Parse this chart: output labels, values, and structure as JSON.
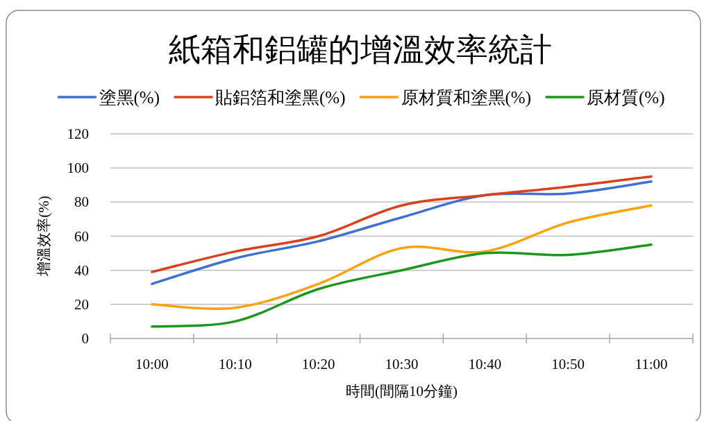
{
  "chart_data": {
    "type": "line",
    "title": "紙箱和鋁罐的增溫效率統計",
    "xlabel": "時間(間隔10分鐘)",
    "ylabel": "增溫效率(%)",
    "categories": [
      "10:00",
      "10:10",
      "10:20",
      "10:30",
      "10:40",
      "10:50",
      "11:00"
    ],
    "series": [
      {
        "name": "塗黑(%)",
        "color": "#3f6fd1",
        "values": [
          32,
          47,
          57,
          71,
          84,
          85,
          92
        ]
      },
      {
        "name": "貼鋁箔和塗黑(%)",
        "color": "#d9411c",
        "values": [
          39,
          51,
          60,
          78,
          84,
          89,
          95
        ]
      },
      {
        "name": "原材質和塗黑(%)",
        "color": "#ffa10a",
        "values": [
          20,
          18,
          32,
          53,
          51,
          68,
          78
        ]
      },
      {
        "name": "原材質(%)",
        "color": "#1c961c",
        "values": [
          7,
          10,
          29,
          40,
          50,
          49,
          55
        ]
      }
    ],
    "ylim": [
      0,
      120
    ],
    "yticks": [
      0,
      20,
      40,
      60,
      80,
      100,
      120
    ],
    "grid": "y",
    "legend": "top",
    "line_style": "solid"
  }
}
